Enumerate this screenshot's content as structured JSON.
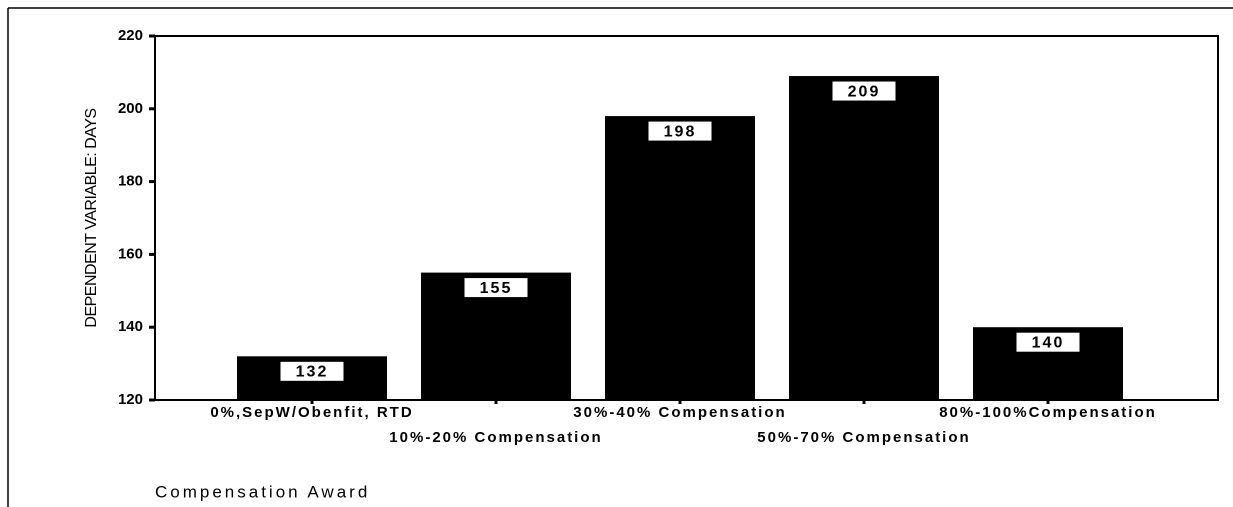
{
  "chart_data": {
    "type": "bar",
    "categories": [
      "0%,SepW/Obenfit, RTD",
      "10%-20% Compensation",
      "30%-40% Compensation",
      "50%-70% Compensation",
      "80%-100%Compensation"
    ],
    "values": [
      132,
      155,
      198,
      209,
      140
    ],
    "color": "#000000",
    "ylim": [
      120,
      220
    ],
    "yticks": [
      120,
      140,
      160,
      180,
      200,
      220
    ],
    "x_label": "Compensation Award",
    "y_label": "DEPENDENT VARIABLE: DAYS"
  }
}
